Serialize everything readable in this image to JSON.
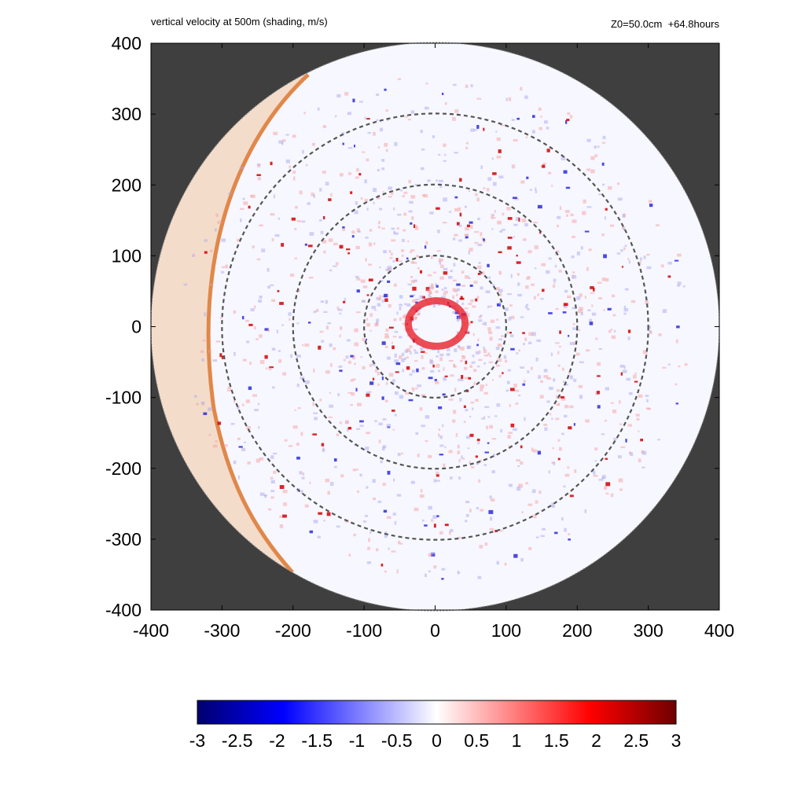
{
  "chart_data": {
    "type": "heatmap",
    "title": "vertical velocity at 500m (shading, m/s)",
    "info_label": "Z0=50.0cm  +64.8hours",
    "xlim": [
      -400,
      400
    ],
    "ylim": [
      -400,
      400
    ],
    "x_ticks": [
      -400,
      -300,
      -200,
      -100,
      0,
      100,
      200,
      300,
      400
    ],
    "y_ticks": [
      -400,
      -300,
      -200,
      -100,
      0,
      100,
      200,
      300,
      400
    ],
    "x_tick_labels": [
      "-400",
      "-300",
      "-200",
      "-100",
      "0",
      "100",
      "200",
      "300",
      "400"
    ],
    "y_tick_labels": [
      "400",
      "300",
      "200",
      "100",
      "0",
      "-100",
      "-200",
      "-300",
      "-400"
    ],
    "domain_radius": 400,
    "reference_circles_radii": [
      100,
      200,
      300
    ],
    "eyewall_radius_approx": 40,
    "colorbar": {
      "min": -3,
      "max": 3,
      "ticks": [
        -3,
        -2.5,
        -2,
        -1.5,
        -1,
        -0.5,
        0,
        0.5,
        1,
        1.5,
        2,
        2.5,
        3
      ],
      "tick_labels": [
        "-3",
        "-2.5",
        "-2",
        "-1.5",
        "-1",
        "-0.5",
        "0",
        "0.5",
        "1",
        "1.5",
        "2",
        "2.5",
        "3"
      ],
      "colors": [
        "#00006e",
        "#0000ff",
        "#ffffff",
        "#ff0000",
        "#6e0000"
      ]
    },
    "background_color": "#3f3f3f",
    "land_color": "#f4dccb",
    "coastline_color": "#e0884a"
  }
}
